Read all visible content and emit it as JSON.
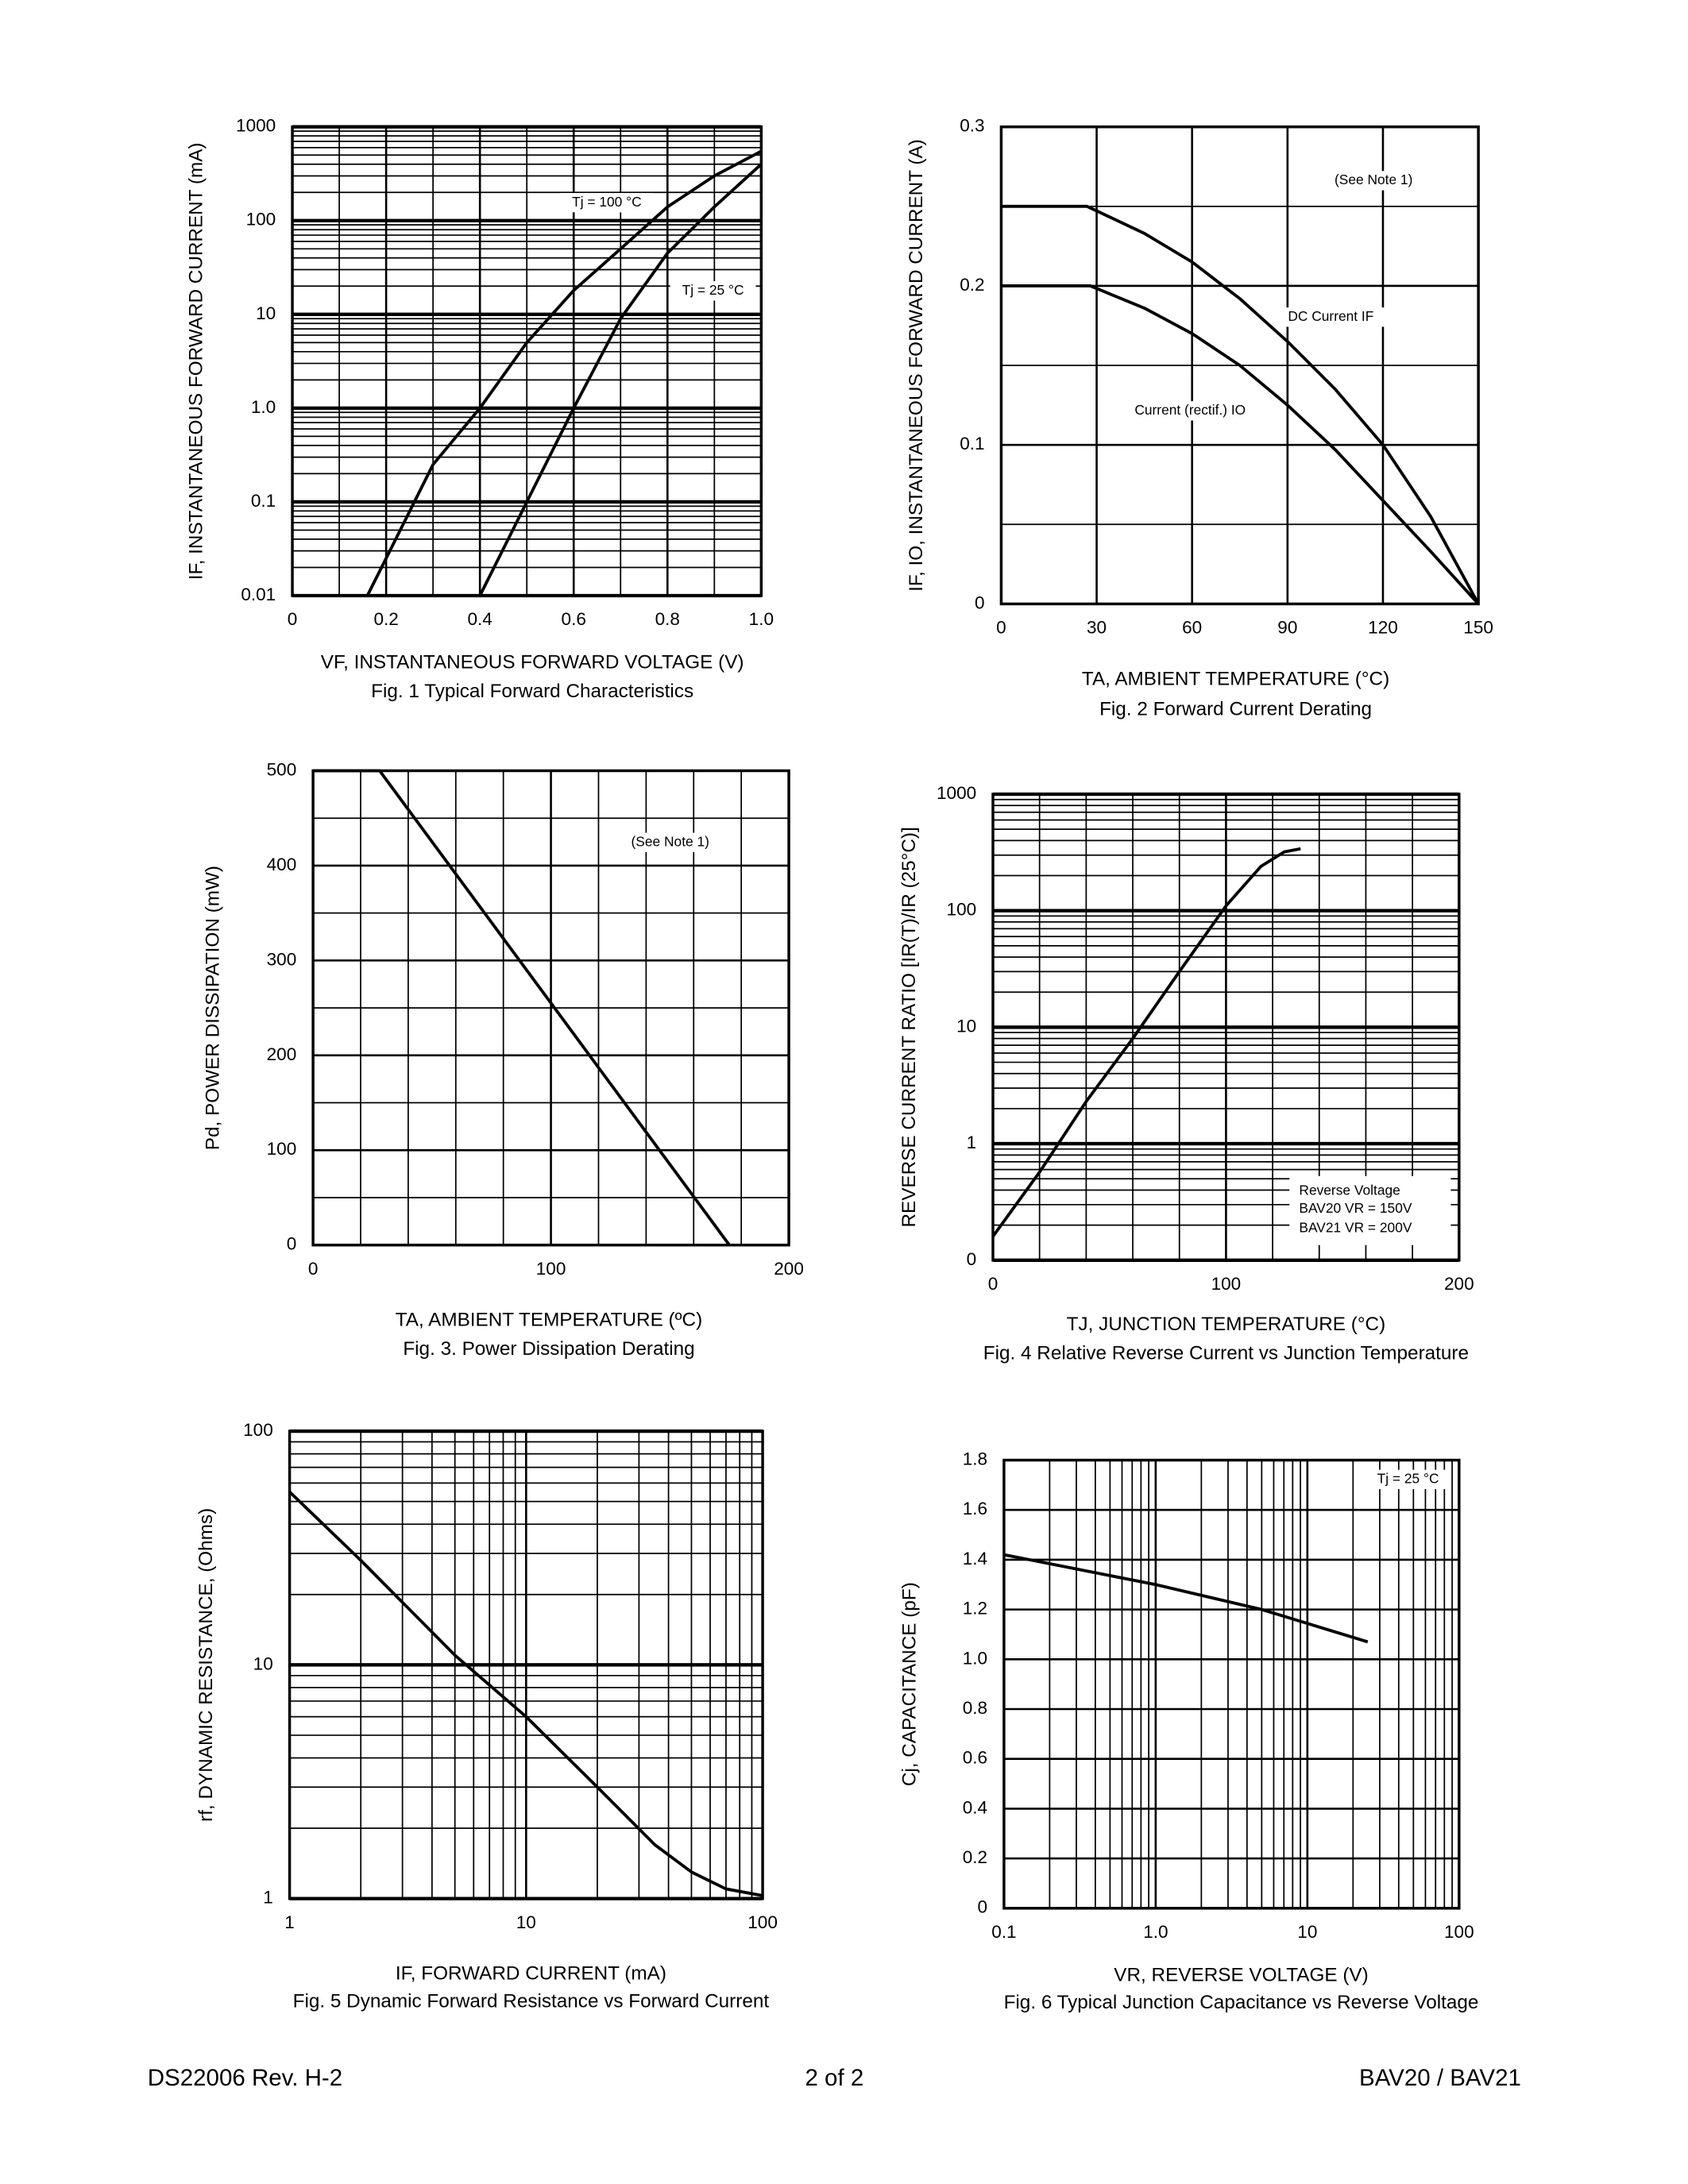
{
  "chart_data": [
    {
      "type": "line",
      "ylabel": "IF, INSTANTANEOUS FORWARD CURRENT (mA)",
      "xlabel": "VF,  INSTANTANEOUS FORWARD VOLTAGE (V)",
      "caption": "Fig. 1  Typical Forward Characteristics",
      "xscale": "linear",
      "yscale": "log",
      "xlim": [
        0,
        1
      ],
      "ylim": [
        0.01,
        1000
      ],
      "xticks": [
        0,
        0.2,
        0.4,
        0.6,
        0.8,
        {
          "value": 1,
          "label": "1.0"
        }
      ],
      "yticks": [
        0.01,
        0.1,
        {
          "value": 1,
          "label": "1.0"
        },
        10,
        100,
        1000
      ],
      "xgrid_divisions": 2,
      "grid": true,
      "series": [
        {
          "name": "Tj = 100 °C",
          "color": "#000000",
          "x": [
            0.16,
            0.2,
            0.3,
            0.4,
            0.5,
            0.6,
            0.7,
            0.8,
            0.9,
            1.0
          ],
          "values": [
            0.01,
            0.025,
            0.25,
            1.0,
            5,
            18,
            50,
            140,
            300,
            550
          ]
        },
        {
          "name": "Tj = 25 °C",
          "color": "#000000",
          "x": [
            0.4,
            0.5,
            0.6,
            0.7,
            0.8,
            0.9,
            1.0
          ],
          "values": [
            0.01,
            0.1,
            1.0,
            9,
            45,
            140,
            400
          ]
        }
      ]
    },
    {
      "type": "line",
      "ylabel": "IF, IO, INSTANTANEOUS FORWARD CURRENT (A)",
      "xlabel": "TA, AMBIENT TEMPERATURE  (°C)",
      "caption": "Fig. 2  Forward Current Derating",
      "xscale": "linear",
      "yscale": "linear",
      "xlim": [
        0,
        150
      ],
      "ylim": [
        0,
        0.3
      ],
      "xticks": [
        0,
        30,
        60,
        90,
        120,
        150
      ],
      "yticks": [
        0,
        0.1,
        0.2,
        0.3
      ],
      "ygrid_divisions": 2,
      "grid": true,
      "annotations": [
        "(See Note 1)"
      ],
      "series": [
        {
          "name": "DC Current IF",
          "color": "#000000",
          "x": [
            0,
            27,
            45,
            60,
            75,
            90,
            105,
            120,
            135,
            150
          ],
          "values": [
            0.25,
            0.25,
            0.233,
            0.215,
            0.192,
            0.165,
            0.135,
            0.1,
            0.055,
            0
          ]
        },
        {
          "name": "Current (rectif.) IO",
          "color": "#000000",
          "x": [
            0,
            28,
            45,
            60,
            75,
            90,
            105,
            120,
            135,
            150
          ],
          "values": [
            0.2,
            0.2,
            0.186,
            0.17,
            0.15,
            0.125,
            0.097,
            0.065,
            0.033,
            0
          ]
        }
      ]
    },
    {
      "type": "line",
      "ylabel": "Pd, POWER DISSIPATION (mW)",
      "xlabel": "TA, AMBIENT TEMPERATURE (ºC)",
      "caption": "Fig. 3.  Power Dissipation Derating",
      "xscale": "linear",
      "yscale": "linear",
      "xlim": [
        0,
        200
      ],
      "ylim": [
        0,
        500
      ],
      "xticks": [
        0,
        100,
        200
      ],
      "yticks": [
        0,
        100,
        200,
        300,
        400,
        500
      ],
      "xgrid_divisions": 5,
      "ygrid_divisions": 2,
      "grid": true,
      "annotations": [
        "(See Note 1)"
      ],
      "series": [
        {
          "color": "#000000",
          "x": [
            0,
            28,
            175
          ],
          "values": [
            500,
            500,
            0
          ]
        }
      ]
    },
    {
      "type": "line",
      "ylabel": "REVERSE CURRENT RATIO [IR(T)/IR (25°C)]",
      "xlabel": "TJ, JUNCTION TEMPERATURE (°C)",
      "caption": "Fig. 4  Relative Reverse Current vs Junction Temperature",
      "xscale": "linear",
      "yscale": "log",
      "xlim": [
        0,
        200
      ],
      "ylim": [
        0.1,
        1000
      ],
      "xticks": [
        0,
        100,
        200
      ],
      "yticks": [
        {
          "value": 0.1,
          "label": "0"
        },
        1,
        10,
        100,
        1000
      ],
      "xgrid_divisions": 5,
      "grid": true,
      "annotations": [
        "Reverse Voltage",
        "BAV20  VR = 150V",
        "BAV21  VR = 200V"
      ],
      "series": [
        {
          "color": "#000000",
          "x": [
            0,
            20,
            40,
            60,
            80,
            100,
            115,
            125,
            132
          ],
          "values": [
            0.16,
            0.57,
            2.3,
            8,
            30,
            110,
            240,
            320,
            340
          ]
        }
      ]
    },
    {
      "type": "line",
      "ylabel": "rf, DYNAMIC RESISTANCE, (Ohms)",
      "xlabel": "IF, FORWARD CURRENT (mA)",
      "caption": "Fig. 5 Dynamic Forward Resistance vs Forward Current",
      "xscale": "log",
      "yscale": "log",
      "xlim": [
        1,
        100
      ],
      "ylim": [
        1,
        100
      ],
      "xticks": [
        1,
        10,
        100
      ],
      "yticks": [
        1,
        10,
        100
      ],
      "grid": true,
      "series": [
        {
          "color": "#000000",
          "x": [
            1,
            2,
            5,
            10,
            20,
            35,
            50,
            70,
            100
          ],
          "values": [
            55,
            28,
            11,
            6,
            3,
            1.7,
            1.3,
            1.1,
            1.03
          ]
        }
      ]
    },
    {
      "type": "line",
      "ylabel": "Cj, CAPACITANCE (pF)",
      "xlabel": "VR, REVERSE VOLTAGE (V)",
      "caption": "Fig. 6  Typical Junction Capacitance vs Reverse Voltage",
      "xscale": "log",
      "yscale": "linear",
      "xlim": [
        0.1,
        100
      ],
      "ylim": [
        0,
        1.8
      ],
      "xticks": [
        0.1,
        {
          "value": 1,
          "label": "1.0"
        },
        10,
        100
      ],
      "yticks": [
        0,
        0.2,
        0.4,
        0.6,
        0.8,
        {
          "value": 1,
          "label": "1.0"
        },
        1.2,
        1.4,
        1.6,
        1.8
      ],
      "grid": true,
      "annotations": [
        "Tj = 25 °C"
      ],
      "series": [
        {
          "color": "#000000",
          "x": [
            0.1,
            1,
            5,
            25
          ],
          "values": [
            1.42,
            1.3,
            1.2,
            1.07
          ]
        }
      ]
    }
  ],
  "footer": {
    "left": "DS22006 Rev. H-2",
    "center": "2 of 2",
    "right": "BAV20 / BAV21"
  }
}
